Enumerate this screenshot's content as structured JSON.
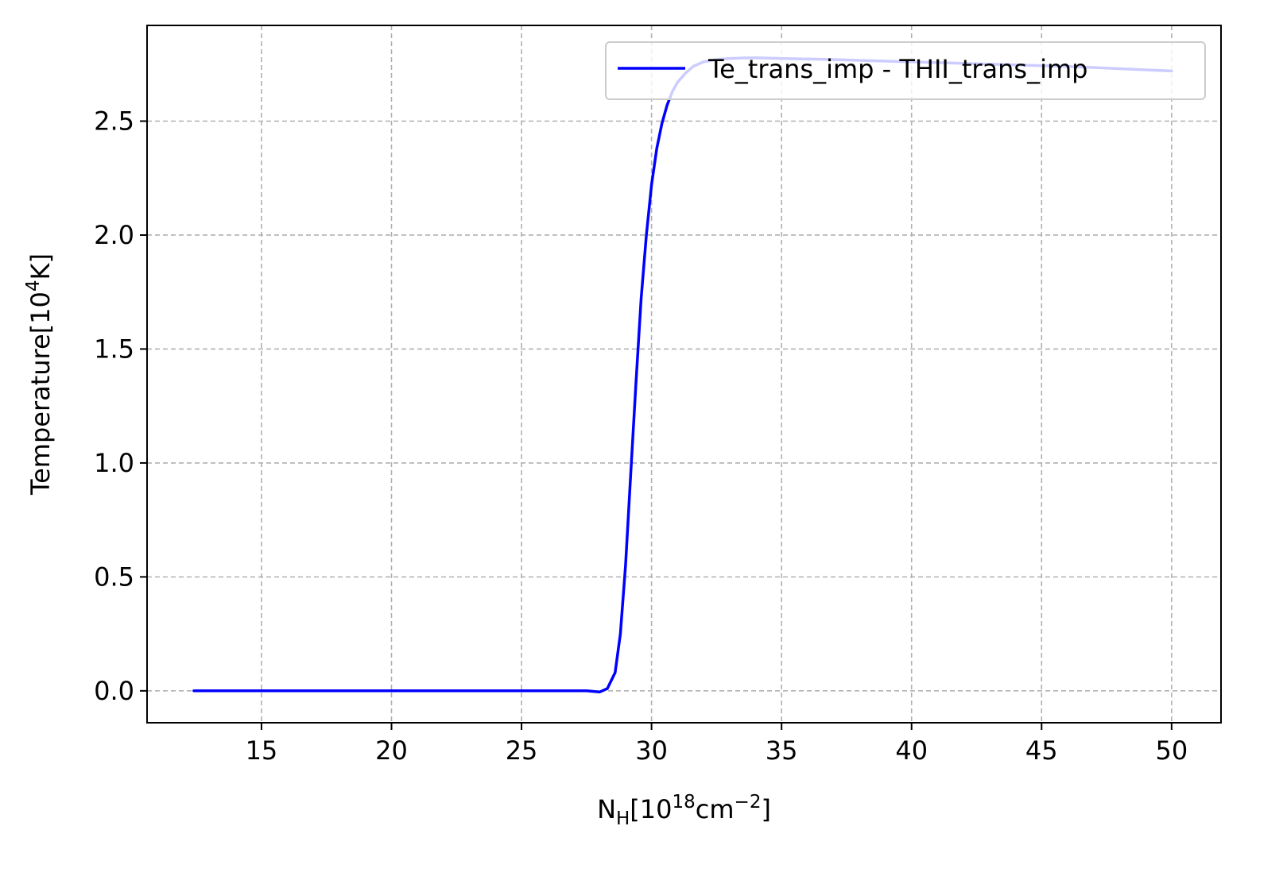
{
  "chart_data": {
    "type": "line",
    "title": "",
    "xlabel": {
      "main": "N",
      "subscript": "H",
      "open": "[10",
      "exponent": "18",
      "unit": "cm",
      "unit_exponent": "−2",
      "close": "]"
    },
    "ylabel": {
      "main": "Temperature[10",
      "exponent": "4",
      "close": "K]"
    },
    "xlim": [
      10.6,
      51.9
    ],
    "ylim": [
      -0.14,
      2.92
    ],
    "xticks": [
      15,
      20,
      25,
      30,
      35,
      40,
      45,
      50
    ],
    "xtick_labels": [
      "15",
      "20",
      "25",
      "30",
      "35",
      "40",
      "45",
      "50"
    ],
    "yticks": [
      0.0,
      0.5,
      1.0,
      1.5,
      2.0,
      2.5
    ],
    "ytick_labels": [
      "0.0",
      "0.5",
      "1.0",
      "1.5",
      "2.0",
      "2.5"
    ],
    "grid": true,
    "grid_style": "dashed",
    "legend_position": "top-right",
    "series": [
      {
        "name": "Te_trans_imp - THII_trans_imp",
        "color": "#0000ff",
        "x": [
          12.4,
          15,
          20,
          25,
          27.5,
          28.0,
          28.3,
          28.6,
          28.8,
          29.0,
          29.2,
          29.4,
          29.6,
          29.8,
          30.0,
          30.2,
          30.4,
          30.6,
          30.8,
          31.0,
          31.3,
          31.6,
          32.0,
          32.5,
          33.0,
          33.5,
          34.0,
          35.0,
          37.0,
          40.0,
          43.0,
          46.0,
          48.0,
          50.0
        ],
        "y": [
          0.0,
          0.0,
          0.0,
          0.0,
          0.0,
          -0.005,
          0.01,
          0.08,
          0.25,
          0.55,
          0.95,
          1.35,
          1.72,
          2.0,
          2.22,
          2.38,
          2.49,
          2.57,
          2.63,
          2.67,
          2.71,
          2.74,
          2.76,
          2.77,
          2.775,
          2.777,
          2.778,
          2.775,
          2.77,
          2.76,
          2.75,
          2.74,
          2.73,
          2.72
        ]
      }
    ]
  }
}
